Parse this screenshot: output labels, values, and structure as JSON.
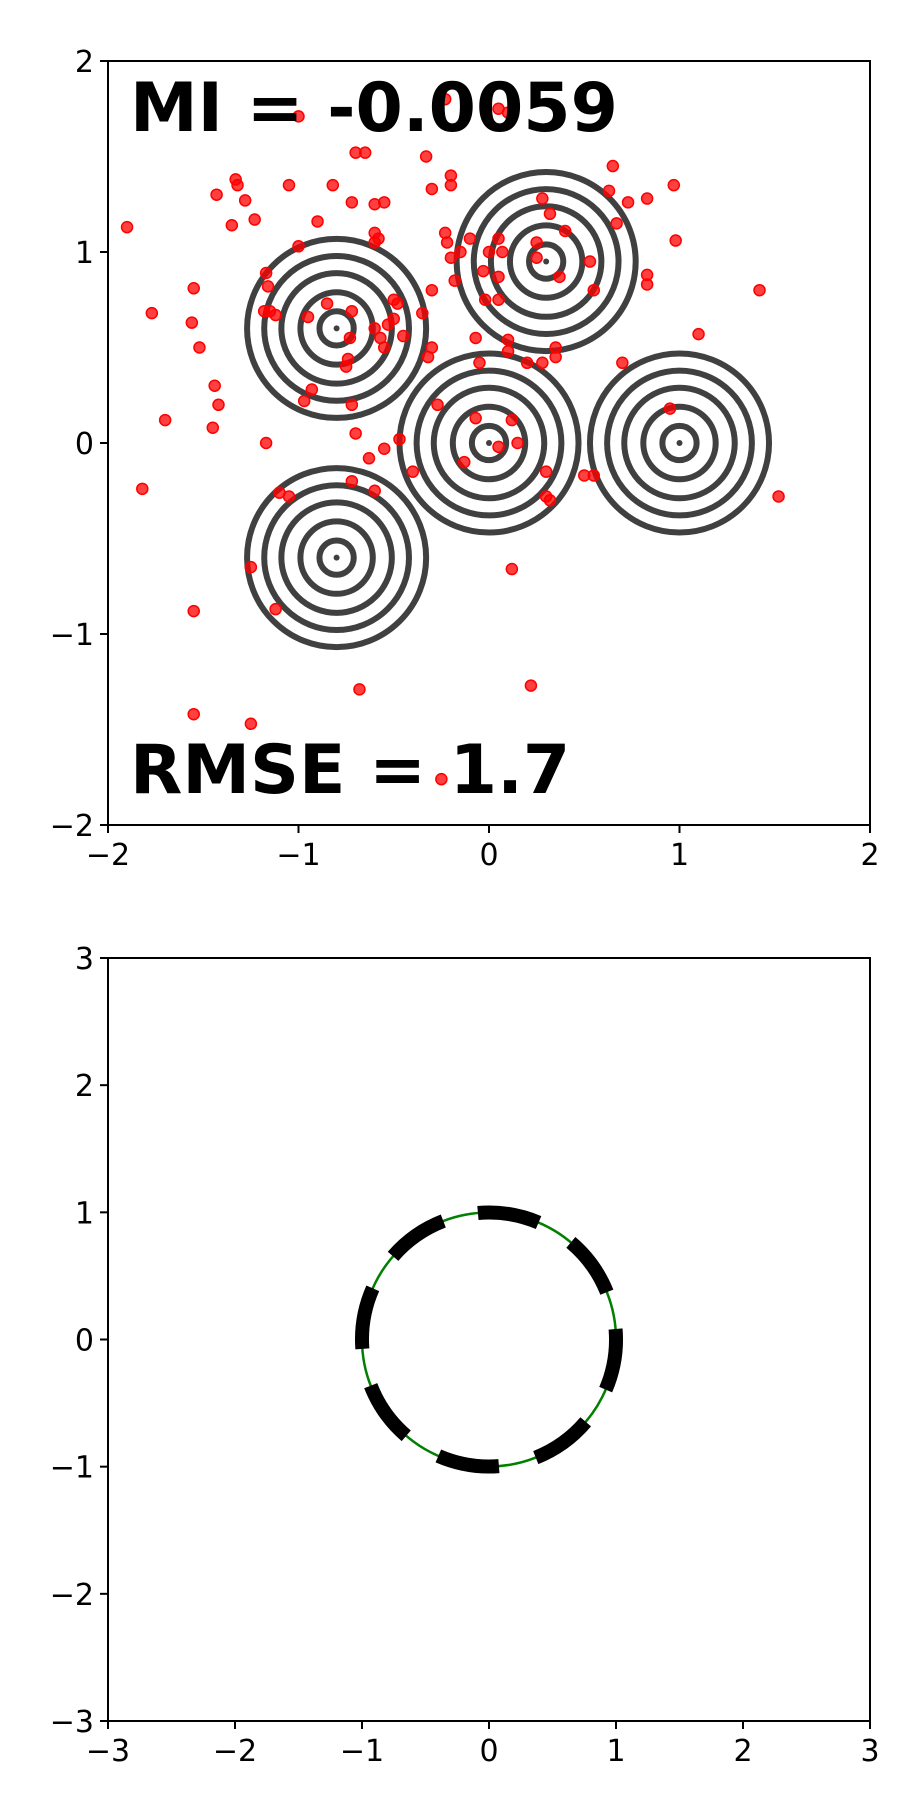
{
  "chart_data": [
    {
      "type": "scatter",
      "annotations": [
        "MI = -0.0059",
        "RMSE = 1.7"
      ],
      "xlim": [
        -2,
        2
      ],
      "ylim": [
        -2,
        2
      ],
      "xticks": [
        {
          "value": -2,
          "label": "−2"
        },
        {
          "value": -1,
          "label": "−1"
        },
        0,
        1,
        2
      ],
      "yticks": [
        {
          "value": -2,
          "label": "−2"
        },
        {
          "value": -1,
          "label": "−1"
        },
        0,
        1,
        2
      ],
      "contour_centers": {
        "x": [
          -0.8,
          0.3,
          0,
          1,
          -0.8
        ],
        "y": [
          0.6,
          0.95,
          0,
          0,
          -0.6
        ],
        "color": "#404040"
      },
      "color": "#ff0000",
      "x": [
        -1.9,
        -1.77,
        -1.82,
        -1.7,
        -1.55,
        -1.56,
        -1.52,
        -1.44,
        -1.42,
        -1.45,
        -1.43,
        -1.35,
        -1.33,
        -1.32,
        -1.28,
        -1.23,
        -1.17,
        -1.16,
        -1.18,
        -1.15,
        -1.17,
        -1.12,
        -1.1,
        -1.05,
        -1.25,
        -1.12,
        -1.55,
        -1.55,
        -1.25,
        -1.0,
        -1.0,
        -0.97,
        -0.93,
        -1.05,
        -0.9,
        -0.85,
        -0.82,
        -0.95,
        -0.75,
        -0.74,
        -0.73,
        -0.72,
        -0.72,
        -0.7,
        -0.72,
        -0.7,
        -0.65,
        -0.6,
        -0.6,
        -0.6,
        -0.58,
        -0.55,
        -0.6,
        -0.57,
        -0.55,
        -0.53,
        -0.5,
        -0.5,
        -0.48,
        -0.45,
        -0.47,
        -0.55,
        -0.63,
        -0.6,
        -0.72,
        -0.68,
        -0.4,
        -0.35,
        -0.3,
        -0.3,
        -0.33,
        -0.3,
        -0.32,
        -0.27,
        -0.23,
        -0.23,
        -0.2,
        -0.2,
        -0.22,
        -0.2,
        -0.18,
        -0.15,
        -0.1,
        -0.07,
        -0.07,
        -0.03,
        0.0,
        -0.05,
        -0.02,
        0.05,
        0.05,
        0.05,
        0.07,
        0.1,
        0.1,
        0.12,
        0.15,
        0.05,
        0.12,
        0.2,
        0.22,
        0.25,
        0.28,
        0.28,
        0.3,
        0.3,
        0.32,
        0.35,
        0.35,
        0.37,
        0.4,
        0.5,
        0.55,
        0.53,
        0.55,
        0.63,
        0.65,
        0.67,
        0.7,
        0.73,
        0.83,
        0.83,
        0.83,
        0.95,
        0.97,
        0.98,
        1.1,
        1.42,
        1.52,
        -0.25,
        0.05,
        0.1,
        -0.13,
        0.32,
        0.25
      ],
      "y": [
        1.13,
        0.68,
        -0.24,
        0.12,
        0.81,
        0.63,
        0.5,
        0.3,
        0.2,
        0.08,
        1.3,
        1.14,
        1.38,
        1.35,
        1.27,
        1.17,
        0.89,
        0.82,
        0.69,
        0.69,
        0.0,
        0.67,
        -0.26,
        -0.28,
        -0.65,
        -0.87,
        -0.88,
        -1.42,
        -1.47,
        1.03,
        1.71,
        0.22,
        0.28,
        1.35,
        1.16,
        0.73,
        1.35,
        0.66,
        0.4,
        0.44,
        0.55,
        0.69,
        0.2,
        0.05,
        1.26,
        1.52,
        1.52,
        1.25,
        1.1,
        1.05,
        1.07,
        1.26,
        0.6,
        0.55,
        0.5,
        0.62,
        0.75,
        0.65,
        0.73,
        0.56,
        0.02,
        -0.03,
        -0.08,
        -0.25,
        -0.2,
        -1.29,
        -0.15,
        0.68,
        0.8,
        1.33,
        1.5,
        0.5,
        0.45,
        0.2,
        1.1,
        1.8,
        1.35,
        1.4,
        1.05,
        0.97,
        0.85,
        1.0,
        1.07,
        0.55,
        0.13,
        0.9,
        1.0,
        0.42,
        0.75,
        0.87,
        1.07,
        0.75,
        1.0,
        0.54,
        0.48,
        0.12,
        0.0,
        -0.02,
        -0.66,
        0.42,
        -1.27,
        1.05,
        1.28,
        0.42,
        -0.28,
        -0.15,
        -0.3,
        0.45,
        0.5,
        0.87,
        1.11,
        -0.17,
        -0.17,
        0.95,
        0.8,
        1.32,
        1.45,
        1.15,
        0.42,
        1.26,
        0.88,
        0.83,
        1.28,
        0.18,
        1.35,
        1.06,
        0.57,
        0.8,
        -0.28,
        -1.76,
        1.75,
        1.73,
        -0.1,
        1.2,
        0.97
      ]
    },
    {
      "type": "circle",
      "xlim": [
        -3,
        3
      ],
      "ylim": [
        -3,
        3
      ],
      "xticks": [
        {
          "value": -3,
          "label": "−3"
        },
        {
          "value": -2,
          "label": "−2"
        },
        {
          "value": -1,
          "label": "−1"
        },
        0,
        1,
        2,
        3
      ],
      "yticks": [
        {
          "value": -3,
          "label": "−3"
        },
        {
          "value": -2,
          "label": "−2"
        },
        {
          "value": -1,
          "label": "−1"
        },
        0,
        1,
        2,
        3
      ],
      "center": [
        0,
        0
      ],
      "radius": 1,
      "color": "#008000",
      "dash_color": "#000000"
    }
  ]
}
